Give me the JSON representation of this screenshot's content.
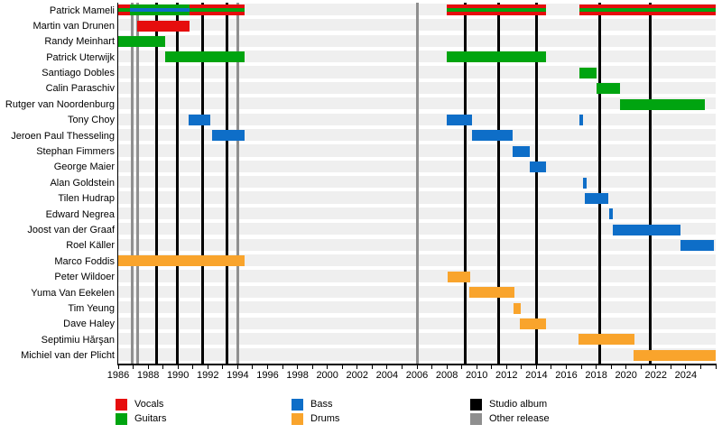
{
  "chart_data": {
    "type": "timeline",
    "title": "Band members timeline (gantt-style, Wikipedia EasyTimeline look)",
    "x_axis": {
      "start": 1986,
      "end": 2026,
      "minor_tick_every_years": 1,
      "label_every_years": 2,
      "labels": [
        "1986",
        "1988",
        "1990",
        "1992",
        "1994",
        "1996",
        "1998",
        "2000",
        "2002",
        "2004",
        "2006",
        "2008",
        "2010",
        "2012",
        "2014",
        "2016",
        "2018",
        "2020",
        "2022",
        "2024"
      ]
    },
    "colors": {
      "vocals": "#e60d0d",
      "guitars": "#00a410",
      "bass": "#0e6ec8",
      "drums": "#f9a42c",
      "studio_album": "#000000",
      "other_release": "#8f8f8f",
      "row_band": "#efefef",
      "background": "#ffffff"
    },
    "legend": [
      {
        "label": "Vocals",
        "role": "vocals"
      },
      {
        "label": "Guitars",
        "role": "guitars"
      },
      {
        "label": "Bass",
        "role": "bass"
      },
      {
        "label": "Drums",
        "role": "drums"
      },
      {
        "label": "Studio album",
        "role": "studio_album"
      },
      {
        "label": "Other release",
        "role": "other_release"
      }
    ],
    "members": [
      {
        "name": "Patrick Mameli",
        "segments": [
          {
            "start": 1986.0,
            "end": 1986.79,
            "stripes": [
              "vocals",
              "guitars",
              "vocals"
            ]
          },
          {
            "start": 1986.79,
            "end": 1990.8,
            "stripes": [
              "guitars",
              "bass",
              "guitars"
            ]
          },
          {
            "start": 1990.8,
            "end": 1994.43,
            "stripes": [
              "vocals",
              "guitars",
              "vocals"
            ]
          },
          {
            "start": 2008.0,
            "end": 2014.64,
            "stripes": [
              "vocals",
              "guitars",
              "vocals"
            ]
          },
          {
            "start": 2016.88,
            "end": 2026.0,
            "stripes": [
              "vocals",
              "guitars",
              "vocals"
            ]
          }
        ]
      },
      {
        "name": "Martin van Drunen",
        "segments": [
          {
            "start": 1987.27,
            "end": 1990.8,
            "stripes": [
              "vocals"
            ]
          }
        ]
      },
      {
        "name": "Randy Meinhart",
        "segments": [
          {
            "start": 1986.0,
            "end": 1989.17,
            "stripes": [
              "guitars"
            ]
          }
        ]
      },
      {
        "name": "Patrick Uterwijk",
        "segments": [
          {
            "start": 1989.17,
            "end": 1994.43,
            "stripes": [
              "guitars"
            ]
          },
          {
            "start": 2008.0,
            "end": 2014.64,
            "stripes": [
              "guitars"
            ]
          }
        ]
      },
      {
        "name": "Santiago Dobles",
        "segments": [
          {
            "start": 2016.88,
            "end": 2018.0,
            "stripes": [
              "guitars"
            ]
          }
        ]
      },
      {
        "name": "Calin Paraschiv",
        "segments": [
          {
            "start": 2018.0,
            "end": 2019.6,
            "stripes": [
              "guitars"
            ]
          }
        ]
      },
      {
        "name": "Rutger van Noordenburg",
        "segments": [
          {
            "start": 2019.6,
            "end": 2025.27,
            "stripes": [
              "guitars"
            ]
          }
        ]
      },
      {
        "name": "Tony Choy",
        "segments": [
          {
            "start": 1990.74,
            "end": 1992.19,
            "stripes": [
              "bass"
            ]
          },
          {
            "start": 2008.0,
            "end": 2009.69,
            "stripes": [
              "bass"
            ]
          },
          {
            "start": 2016.88,
            "end": 2017.12,
            "stripes": [
              "bass"
            ]
          }
        ]
      },
      {
        "name": "Jeroen Paul Thesseling",
        "segments": [
          {
            "start": 1992.28,
            "end": 1994.43,
            "stripes": [
              "bass"
            ]
          },
          {
            "start": 2009.69,
            "end": 2012.41,
            "stripes": [
              "bass"
            ]
          }
        ]
      },
      {
        "name": "Stephan Fimmers",
        "segments": [
          {
            "start": 2012.41,
            "end": 2013.55,
            "stripes": [
              "bass"
            ]
          }
        ]
      },
      {
        "name": "George Maier",
        "segments": [
          {
            "start": 2013.55,
            "end": 2014.64,
            "stripes": [
              "bass"
            ]
          }
        ]
      },
      {
        "name": "Alan Goldstein",
        "segments": [
          {
            "start": 2017.12,
            "end": 2017.36,
            "stripes": [
              "bass"
            ]
          }
        ]
      },
      {
        "name": "Tilen Hudrap",
        "segments": [
          {
            "start": 2017.24,
            "end": 2018.81,
            "stripes": [
              "bass"
            ]
          }
        ]
      },
      {
        "name": "Edward Negrea",
        "segments": [
          {
            "start": 2018.87,
            "end": 2019.11,
            "stripes": [
              "bass"
            ]
          }
        ]
      },
      {
        "name": "Joost van der Graaf",
        "segments": [
          {
            "start": 2019.11,
            "end": 2023.62,
            "stripes": [
              "bass"
            ]
          }
        ]
      },
      {
        "name": "Roel Käller",
        "segments": [
          {
            "start": 2023.62,
            "end": 2025.85,
            "stripes": [
              "bass"
            ]
          }
        ]
      },
      {
        "name": "Marco Foddis",
        "segments": [
          {
            "start": 1986.0,
            "end": 1994.43,
            "stripes": [
              "drums"
            ]
          }
        ]
      },
      {
        "name": "Peter Wildoer",
        "segments": [
          {
            "start": 2008.06,
            "end": 2009.57,
            "stripes": [
              "drums"
            ]
          }
        ]
      },
      {
        "name": "Yuma Van Eekelen",
        "segments": [
          {
            "start": 2009.51,
            "end": 2012.53,
            "stripes": [
              "drums"
            ]
          }
        ]
      },
      {
        "name": "Tim Yeung",
        "segments": [
          {
            "start": 2012.47,
            "end": 2012.95,
            "stripes": [
              "drums"
            ]
          }
        ]
      },
      {
        "name": "Dave Haley",
        "segments": [
          {
            "start": 2012.89,
            "end": 2014.64,
            "stripes": [
              "drums"
            ]
          }
        ]
      },
      {
        "name": "Septimiu Hărşan",
        "segments": [
          {
            "start": 2016.82,
            "end": 2020.59,
            "stripes": [
              "drums"
            ]
          }
        ]
      },
      {
        "name": "Michiel van der Plicht",
        "segments": [
          {
            "start": 2020.5,
            "end": 2026.0,
            "stripes": [
              "drums"
            ]
          }
        ]
      }
    ],
    "releases": {
      "studio_albums": [
        1988.54,
        1989.93,
        1991.62,
        1993.31,
        2009.26,
        2011.44,
        2013.98,
        2018.21,
        2021.59
      ],
      "other_releases": [
        1986.91,
        1987.3,
        1993.98,
        2006.0
      ]
    }
  }
}
